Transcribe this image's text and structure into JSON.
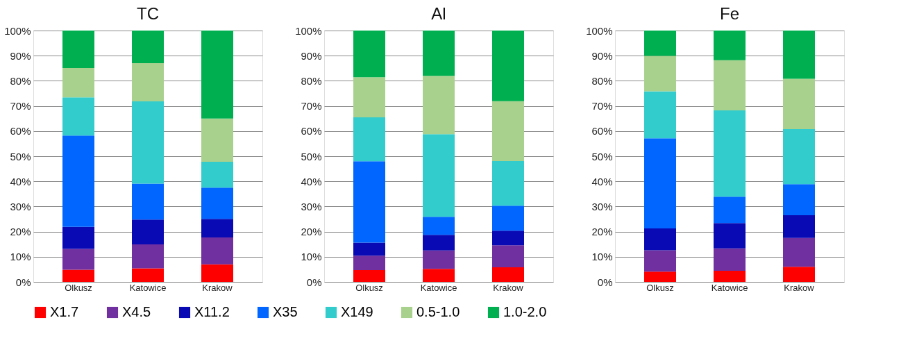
{
  "chart_data": [
    {
      "type": "bar",
      "title": "TC",
      "stacked": true,
      "categories": [
        "Olkusz",
        "Katowice",
        "Krakow"
      ],
      "ylim": [
        0,
        100
      ],
      "yticks": [
        {
          "value": 0,
          "label": "0%"
        },
        {
          "value": 10,
          "label": "10%"
        },
        {
          "value": 20,
          "label": "20%"
        },
        {
          "value": 30,
          "label": "30%"
        },
        {
          "value": 40,
          "label": "40%"
        },
        {
          "value": 50,
          "label": "50%"
        },
        {
          "value": 60,
          "label": "60%"
        },
        {
          "value": 70,
          "label": "70%"
        },
        {
          "value": 80,
          "label": "80%"
        },
        {
          "value": 90,
          "label": "90%"
        },
        {
          "value": 100,
          "label": "100%"
        }
      ],
      "grid": "y",
      "legend": "bottom",
      "series": [
        {
          "name": "X1.7",
          "color": "#ff0000",
          "values": [
            4.8,
            5.4,
            7.0
          ]
        },
        {
          "name": "X4.5",
          "color": "#7030a0",
          "values": [
            8.3,
            9.5,
            10.7
          ]
        },
        {
          "name": "X11.2",
          "color": "#0a0ab4",
          "values": [
            8.8,
            9.9,
            7.4
          ]
        },
        {
          "name": "X35",
          "color": "#0066ff",
          "values": [
            36.3,
            14.3,
            12.4
          ]
        },
        {
          "name": "X149",
          "color": "#33cccc",
          "values": [
            15.2,
            32.7,
            10.3
          ]
        },
        {
          "name": "0.5-1.0",
          "color": "#a9d18e",
          "values": [
            11.7,
            15.2,
            17.2
          ]
        },
        {
          "name": "1.0-2.0",
          "color": "#00b050",
          "values": [
            14.9,
            13.0,
            35.0
          ]
        }
      ]
    },
    {
      "type": "bar",
      "title": "Al",
      "stacked": true,
      "categories": [
        "Olkusz",
        "Katowice",
        "Krakow"
      ],
      "ylim": [
        0,
        100
      ],
      "yticks": [
        {
          "value": 0,
          "label": "0%"
        },
        {
          "value": 10,
          "label": "10%"
        },
        {
          "value": 20,
          "label": "20%"
        },
        {
          "value": 30,
          "label": "30%"
        },
        {
          "value": 40,
          "label": "40%"
        },
        {
          "value": 50,
          "label": "50%"
        },
        {
          "value": 60,
          "label": "60%"
        },
        {
          "value": 70,
          "label": "70%"
        },
        {
          "value": 80,
          "label": "80%"
        },
        {
          "value": 90,
          "label": "90%"
        },
        {
          "value": 100,
          "label": "100%"
        }
      ],
      "grid": "y",
      "legend": "bottom",
      "series": [
        {
          "name": "X1.7",
          "color": "#ff0000",
          "values": [
            4.7,
            5.2,
            5.8
          ]
        },
        {
          "name": "X4.5",
          "color": "#7030a0",
          "values": [
            5.7,
            7.3,
            8.8
          ]
        },
        {
          "name": "X11.2",
          "color": "#0a0ab4",
          "values": [
            5.2,
            6.2,
            5.8
          ]
        },
        {
          "name": "X35",
          "color": "#0066ff",
          "values": [
            32.4,
            7.2,
            9.9
          ]
        },
        {
          "name": "X149",
          "color": "#33cccc",
          "values": [
            17.5,
            32.9,
            17.8
          ]
        },
        {
          "name": "0.5-1.0",
          "color": "#a9d18e",
          "values": [
            15.9,
            23.2,
            23.8
          ]
        },
        {
          "name": "1.0-2.0",
          "color": "#00b050",
          "values": [
            18.6,
            18.0,
            28.1
          ]
        }
      ]
    },
    {
      "type": "bar",
      "title": "Fe",
      "stacked": true,
      "categories": [
        "Olkusz",
        "Katowice",
        "Krakow"
      ],
      "ylim": [
        0,
        100
      ],
      "yticks": [
        {
          "value": 0,
          "label": "0%"
        },
        {
          "value": 10,
          "label": "10%"
        },
        {
          "value": 20,
          "label": "20%"
        },
        {
          "value": 30,
          "label": "30%"
        },
        {
          "value": 40,
          "label": "40%"
        },
        {
          "value": 50,
          "label": "50%"
        },
        {
          "value": 60,
          "label": "60%"
        },
        {
          "value": 70,
          "label": "70%"
        },
        {
          "value": 80,
          "label": "80%"
        },
        {
          "value": 90,
          "label": "90%"
        },
        {
          "value": 100,
          "label": "100%"
        }
      ],
      "grid": "y",
      "legend": "bottom",
      "series": [
        {
          "name": "X1.7",
          "color": "#ff0000",
          "values": [
            4.1,
            4.4,
            6.0
          ]
        },
        {
          "name": "X4.5",
          "color": "#7030a0",
          "values": [
            8.5,
            8.9,
            11.5
          ]
        },
        {
          "name": "X11.2",
          "color": "#0a0ab4",
          "values": [
            8.7,
            10.1,
            9.0
          ]
        },
        {
          "name": "X35",
          "color": "#0066ff",
          "values": [
            35.8,
            10.5,
            12.4
          ]
        },
        {
          "name": "X149",
          "color": "#33cccc",
          "values": [
            18.7,
            34.3,
            21.9
          ]
        },
        {
          "name": "0.5-1.0",
          "color": "#a9d18e",
          "values": [
            14.1,
            20.0,
            20.0
          ]
        },
        {
          "name": "1.0-2.0",
          "color": "#00b050",
          "values": [
            10.1,
            11.8,
            19.2
          ]
        }
      ]
    }
  ]
}
